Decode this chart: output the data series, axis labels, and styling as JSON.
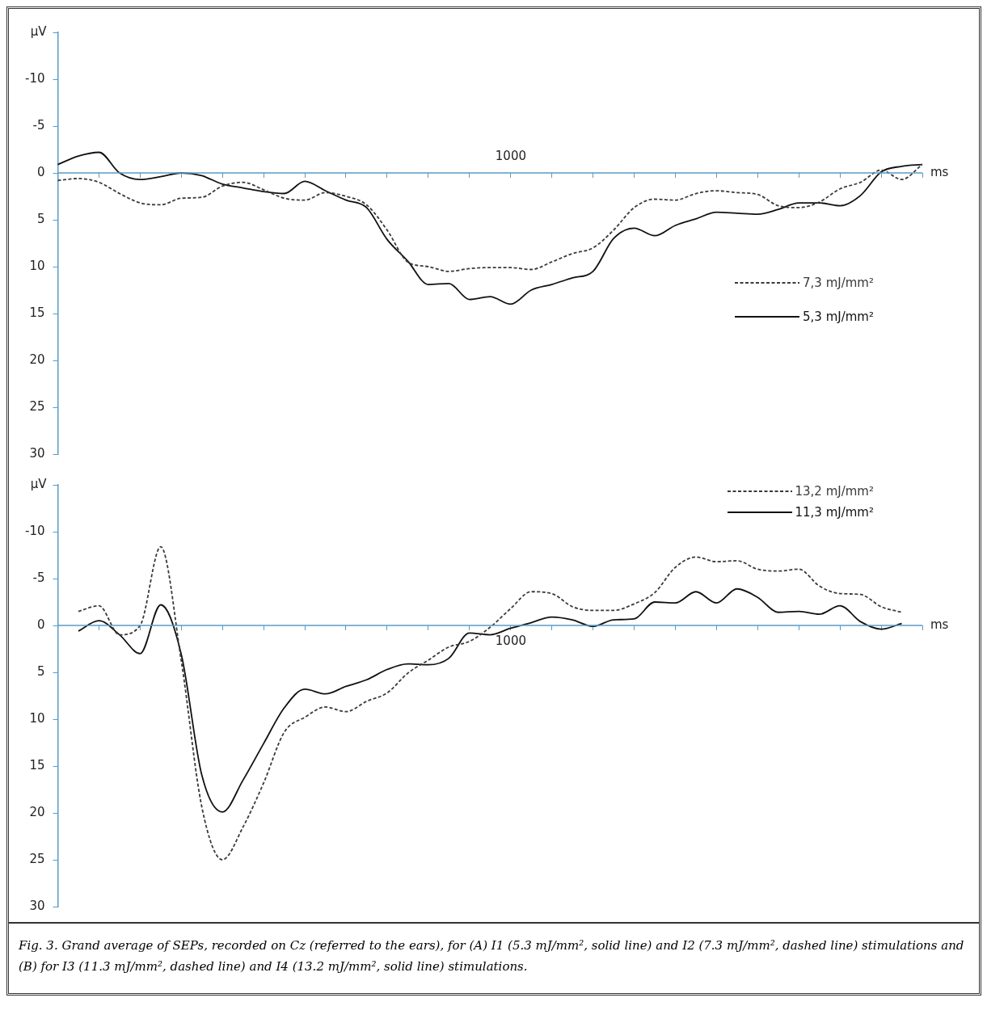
{
  "chart_data": [
    {
      "type": "line",
      "xlabel": "ms",
      "ylabel": "µV",
      "ylim": [
        30,
        -15
      ],
      "categories": [
        null,
        null,
        null,
        null,
        null,
        null,
        null,
        null,
        null,
        null,
        null,
        null,
        null,
        null,
        null,
        null,
        null,
        null,
        null,
        null,
        null,
        null,
        null,
        null,
        null,
        null,
        null,
        null,
        null,
        null,
        null,
        null,
        null,
        null,
        null,
        null,
        null,
        null,
        null,
        null,
        null,
        null,
        null
      ],
      "yticks": [
        {
          "value": -15,
          "label": null
        },
        -10,
        -5,
        0,
        5,
        10,
        15,
        20,
        25,
        30
      ],
      "legend": "right",
      "marker": "none",
      "ref_lines": [
        {
          "axis": "y",
          "value": 0,
          "color": "#5a9cc4"
        }
      ],
      "series": [
        {
          "name": "7,3 mJ/mm²",
          "color": "#3a3a3a",
          "line_style": "dashed",
          "values": [
            0.8,
            0.6,
            1.0,
            2.2,
            3.2,
            3.4,
            2.7,
            2.6,
            1.4,
            1.0,
            1.8,
            2.7,
            2.9,
            2.1,
            2.5,
            3.4,
            6.1,
            9.5,
            10.0,
            10.5,
            10.2,
            10.1,
            10.1,
            10.3,
            9.5,
            8.6,
            8.0,
            6.1,
            3.7,
            2.8,
            2.9,
            2.2,
            1.9,
            2.1,
            2.3,
            3.5,
            3.7,
            3.1,
            1.7,
            1.0,
            -0.3,
            0.7,
            -0.9
          ]
        },
        {
          "name": "5,3 mJ/mm²",
          "color": "#111111",
          "line_style": "solid",
          "values": [
            -0.9,
            -1.8,
            -2.2,
            0,
            0.7,
            0.4,
            0,
            0.3,
            1.2,
            1.6,
            2.0,
            2.2,
            0.9,
            1.9,
            2.9,
            3.7,
            7.1,
            9.4,
            11.9,
            11.8,
            13.5,
            13.2,
            14.0,
            12.5,
            11.9,
            11.2,
            10.5,
            7.0,
            5.9,
            6.7,
            5.6,
            4.9,
            4.2,
            4.3,
            4.4,
            3.9,
            3.2,
            3.2,
            3.5,
            2.4,
            -0.1,
            -0.7,
            -0.9
          ]
        }
      ],
      "annotations": [
        "1000"
      ]
    },
    {
      "type": "line",
      "xlabel": "ms",
      "ylabel": "µV",
      "ylim": [
        30,
        -15
      ],
      "categories": [
        null,
        null,
        null,
        null,
        null,
        null,
        null,
        null,
        null,
        null,
        null,
        null,
        null,
        null,
        null,
        null,
        null,
        null,
        null,
        null,
        null,
        null,
        null,
        null,
        null,
        null,
        null,
        null,
        null,
        null,
        null,
        null,
        null,
        null,
        null,
        null,
        null,
        null,
        null,
        null,
        null,
        null,
        null
      ],
      "yticks": [
        {
          "value": -15,
          "label": null
        },
        -10,
        -5,
        0,
        5,
        10,
        15,
        20,
        25,
        30
      ],
      "legend": "top right",
      "marker": "none",
      "ref_lines": [
        {
          "axis": "y",
          "value": 0,
          "color": "#5a9cc4"
        }
      ],
      "series": [
        {
          "name": "13,2 mJ/mm²",
          "color": "#3a3a3a",
          "line_style": "dashed",
          "values": [
            null,
            -1.5,
            -2.1,
            1.0,
            0,
            -8.4,
            3.8,
            19.4,
            25.0,
            21.5,
            16.8,
            11.4,
            9.8,
            8.7,
            9.2,
            8.1,
            7.2,
            5.1,
            3.7,
            2.3,
            1.7,
            0.2,
            -1.8,
            -3.6,
            -3.4,
            -2.0,
            -1.6,
            -1.6,
            -2.3,
            -3.5,
            -6.2,
            -7.3,
            -6.8,
            -6.9,
            -6.0,
            -5.8,
            -6.0,
            -4.2,
            -3.4,
            -3.3,
            -2.0,
            -1.4,
            null
          ]
        },
        {
          "name": "11,3 mJ/mm²",
          "color": "#111111",
          "line_style": "solid",
          "values": [
            null,
            0.6,
            -0.5,
            1.0,
            3.0,
            -2.2,
            3.1,
            16.0,
            19.9,
            16.5,
            12.6,
            8.8,
            6.8,
            7.3,
            6.5,
            5.8,
            4.7,
            4.1,
            4.2,
            3.5,
            0.8,
            1.0,
            0.3,
            -0.3,
            -0.9,
            -0.6,
            0.1,
            -0.6,
            -0.7,
            -2.5,
            -2.4,
            -3.6,
            -2.4,
            -3.9,
            -3.0,
            -1.4,
            -1.5,
            -1.2,
            -2.1,
            -0.4,
            0.4,
            -0.2,
            null
          ]
        }
      ],
      "annotations": [
        "1000",
        "Fig. 3. Grand average of SEPs, recorded on Cz (referred to the ears), for (A) I1 (5.3 mJ/mm², solid line) and I2 (7.3 mJ/mm², dashed line) stimulations and (B) for I3 (11.3 mJ/mm², dashed line) and I4 (13.2 mJ/mm², solid line) stimulations."
      ]
    }
  ]
}
